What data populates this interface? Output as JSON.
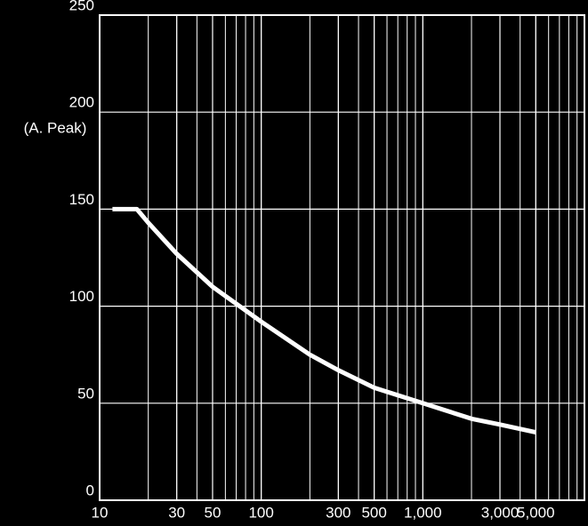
{
  "chart_data": {
    "type": "line",
    "y_label": "(A. Peak)",
    "x": [
      12,
      17,
      20,
      30,
      50,
      100,
      200,
      300,
      500,
      1000,
      2000,
      3000,
      5000
    ],
    "series": [
      {
        "color": "#ffffff",
        "values": [
          150,
          150,
          143,
          127,
          110,
          92,
          75,
          67,
          58,
          50,
          42,
          39,
          35
        ]
      }
    ],
    "x_log": true,
    "xlim": [
      10,
      10000
    ],
    "xticks": [
      10,
      30,
      50,
      100,
      300,
      500,
      {
        "value": 1000,
        "label": "1,000"
      },
      {
        "value": 3000,
        "label": "3,000"
      },
      {
        "value": 5000,
        "label": "5,000"
      }
    ],
    "ylim": [
      0,
      250
    ],
    "yticks": [
      0,
      50,
      100,
      150,
      200,
      250
    ],
    "grid": true,
    "minor_grid": true
  }
}
